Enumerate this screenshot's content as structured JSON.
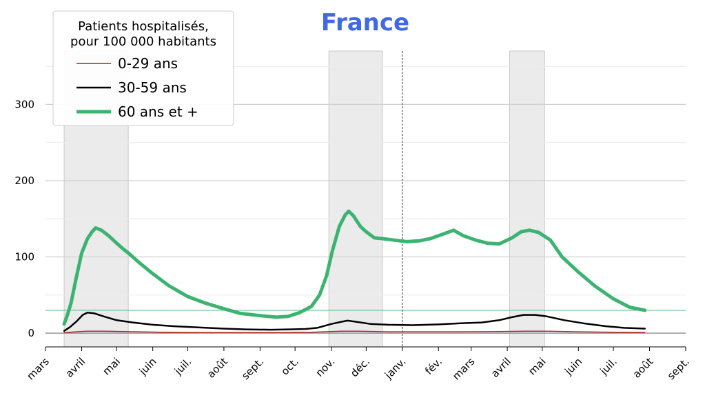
{
  "chart_data": {
    "type": "line",
    "title": "France",
    "title_color": "#4169e1",
    "xlabel": "",
    "ylabel": "",
    "y_ticks": [
      0,
      100,
      200,
      300
    ],
    "ylim": [
      -18,
      370
    ],
    "grid": true,
    "legend": {
      "placement": "top-left",
      "title_lines": [
        "Patients hospitalisés,",
        "pour 100 000 habitants"
      ]
    },
    "x_ticks": [
      {
        "date": "2020-03-01",
        "label": "mars"
      },
      {
        "date": "2020-04-01",
        "label": "avril"
      },
      {
        "date": "2020-05-01",
        "label": "mai"
      },
      {
        "date": "2020-06-01",
        "label": "juin"
      },
      {
        "date": "2020-07-01",
        "label": "juil."
      },
      {
        "date": "2020-08-01",
        "label": "août"
      },
      {
        "date": "2020-09-01",
        "label": "sept."
      },
      {
        "date": "2020-10-01",
        "label": "oct."
      },
      {
        "date": "2020-11-01",
        "label": "nov."
      },
      {
        "date": "2020-12-01",
        "label": "déc."
      },
      {
        "date": "2021-01-01",
        "label": "janv."
      },
      {
        "date": "2021-02-01",
        "label": "fév."
      },
      {
        "date": "2021-03-01",
        "label": "mars"
      },
      {
        "date": "2021-04-01",
        "label": "avril"
      },
      {
        "date": "2021-05-01",
        "label": "mai"
      },
      {
        "date": "2021-06-01",
        "label": "juin"
      },
      {
        "date": "2021-07-01",
        "label": "juil."
      },
      {
        "date": "2021-08-01",
        "label": "août"
      },
      {
        "date": "2021-09-01",
        "label": "sept."
      }
    ],
    "xlim": [
      "2020-03-01",
      "2021-09-01"
    ],
    "lockdowns": [
      {
        "start": "2020-03-17",
        "end": "2020-05-11"
      },
      {
        "start": "2020-10-30",
        "end": "2020-12-15"
      },
      {
        "start": "2021-04-03",
        "end": "2021-05-03"
      }
    ],
    "year_marker": "2021-01-01",
    "reference_line": {
      "value": 30,
      "color": "#3cb371"
    },
    "series": [
      {
        "name": "0-29 ans",
        "color": "#b22222",
        "width": 1.5,
        "points": [
          [
            "2020-03-17",
            0.5
          ],
          [
            "2020-03-25",
            1.5
          ],
          [
            "2020-04-05",
            2.5
          ],
          [
            "2020-04-20",
            2.5
          ],
          [
            "2020-05-10",
            2
          ],
          [
            "2020-06-10",
            1.2
          ],
          [
            "2020-07-15",
            0.8
          ],
          [
            "2020-08-15",
            0.7
          ],
          [
            "2020-09-15",
            0.8
          ],
          [
            "2020-10-15",
            1.2
          ],
          [
            "2020-11-10",
            2.5
          ],
          [
            "2020-11-25",
            2.5
          ],
          [
            "2020-12-20",
            1.8
          ],
          [
            "2021-01-20",
            1.8
          ],
          [
            "2021-02-20",
            1.8
          ],
          [
            "2021-03-20",
            2
          ],
          [
            "2021-04-15",
            2.5
          ],
          [
            "2021-05-05",
            2.5
          ],
          [
            "2021-06-01",
            1.8
          ],
          [
            "2021-07-01",
            1.2
          ],
          [
            "2021-07-28",
            1
          ]
        ]
      },
      {
        "name": "30-59 ans",
        "color": "#000000",
        "width": 2.5,
        "points": [
          [
            "2020-03-17",
            3
          ],
          [
            "2020-03-22",
            8
          ],
          [
            "2020-03-28",
            16
          ],
          [
            "2020-04-02",
            24
          ],
          [
            "2020-04-06",
            27
          ],
          [
            "2020-04-12",
            26
          ],
          [
            "2020-04-20",
            22
          ],
          [
            "2020-05-01",
            17
          ],
          [
            "2020-05-15",
            14
          ],
          [
            "2020-06-01",
            11
          ],
          [
            "2020-06-20",
            9
          ],
          [
            "2020-07-10",
            7.5
          ],
          [
            "2020-08-01",
            6
          ],
          [
            "2020-08-20",
            5
          ],
          [
            "2020-09-10",
            4.5
          ],
          [
            "2020-09-25",
            5
          ],
          [
            "2020-10-10",
            5.5
          ],
          [
            "2020-10-20",
            7
          ],
          [
            "2020-11-01",
            12
          ],
          [
            "2020-11-10",
            15
          ],
          [
            "2020-11-15",
            16.5
          ],
          [
            "2020-11-22",
            15
          ],
          [
            "2020-12-05",
            12
          ],
          [
            "2020-12-20",
            11
          ],
          [
            "2021-01-10",
            10.5
          ],
          [
            "2021-02-01",
            11.5
          ],
          [
            "2021-02-20",
            13
          ],
          [
            "2021-03-10",
            14
          ],
          [
            "2021-03-25",
            17
          ],
          [
            "2021-04-05",
            21
          ],
          [
            "2021-04-15",
            24
          ],
          [
            "2021-04-25",
            24
          ],
          [
            "2021-05-05",
            22
          ],
          [
            "2021-05-20",
            17
          ],
          [
            "2021-06-05",
            13
          ],
          [
            "2021-06-25",
            9
          ],
          [
            "2021-07-10",
            7
          ],
          [
            "2021-07-28",
            6
          ]
        ]
      },
      {
        "name": "60 ans et +",
        "color": "#3cb371",
        "width": 5,
        "points": [
          [
            "2020-03-17",
            12
          ],
          [
            "2020-03-20",
            25
          ],
          [
            "2020-03-23",
            40
          ],
          [
            "2020-03-27",
            70
          ],
          [
            "2020-04-01",
            105
          ],
          [
            "2020-04-06",
            124
          ],
          [
            "2020-04-10",
            133
          ],
          [
            "2020-04-13",
            138
          ],
          [
            "2020-04-18",
            135
          ],
          [
            "2020-04-24",
            128
          ],
          [
            "2020-05-01",
            118
          ],
          [
            "2020-05-07",
            110
          ],
          [
            "2020-05-12",
            104
          ],
          [
            "2020-05-20",
            93
          ],
          [
            "2020-06-01",
            78
          ],
          [
            "2020-06-15",
            62
          ],
          [
            "2020-07-01",
            48
          ],
          [
            "2020-07-15",
            40
          ],
          [
            "2020-08-01",
            32
          ],
          [
            "2020-08-15",
            26
          ],
          [
            "2020-09-01",
            23
          ],
          [
            "2020-09-15",
            21
          ],
          [
            "2020-09-25",
            22
          ],
          [
            "2020-10-05",
            27
          ],
          [
            "2020-10-15",
            35
          ],
          [
            "2020-10-22",
            50
          ],
          [
            "2020-10-28",
            75
          ],
          [
            "2020-11-02",
            108
          ],
          [
            "2020-11-08",
            140
          ],
          [
            "2020-11-13",
            155
          ],
          [
            "2020-11-16",
            160
          ],
          [
            "2020-11-20",
            154
          ],
          [
            "2020-11-26",
            140
          ],
          [
            "2020-12-01",
            133
          ],
          [
            "2020-12-08",
            125
          ],
          [
            "2020-12-15",
            124
          ],
          [
            "2020-12-25",
            122
          ],
          [
            "2021-01-05",
            120
          ],
          [
            "2021-01-15",
            121
          ],
          [
            "2021-01-25",
            124
          ],
          [
            "2021-02-05",
            130
          ],
          [
            "2021-02-14",
            135
          ],
          [
            "2021-02-22",
            128
          ],
          [
            "2021-03-05",
            122
          ],
          [
            "2021-03-15",
            118
          ],
          [
            "2021-03-25",
            117
          ],
          [
            "2021-04-05",
            125
          ],
          [
            "2021-04-13",
            133
          ],
          [
            "2021-04-20",
            135
          ],
          [
            "2021-04-28",
            132
          ],
          [
            "2021-05-08",
            122
          ],
          [
            "2021-05-18",
            100
          ],
          [
            "2021-06-01",
            80
          ],
          [
            "2021-06-15",
            62
          ],
          [
            "2021-07-01",
            45
          ],
          [
            "2021-07-15",
            34
          ],
          [
            "2021-07-28",
            30
          ]
        ]
      }
    ]
  }
}
